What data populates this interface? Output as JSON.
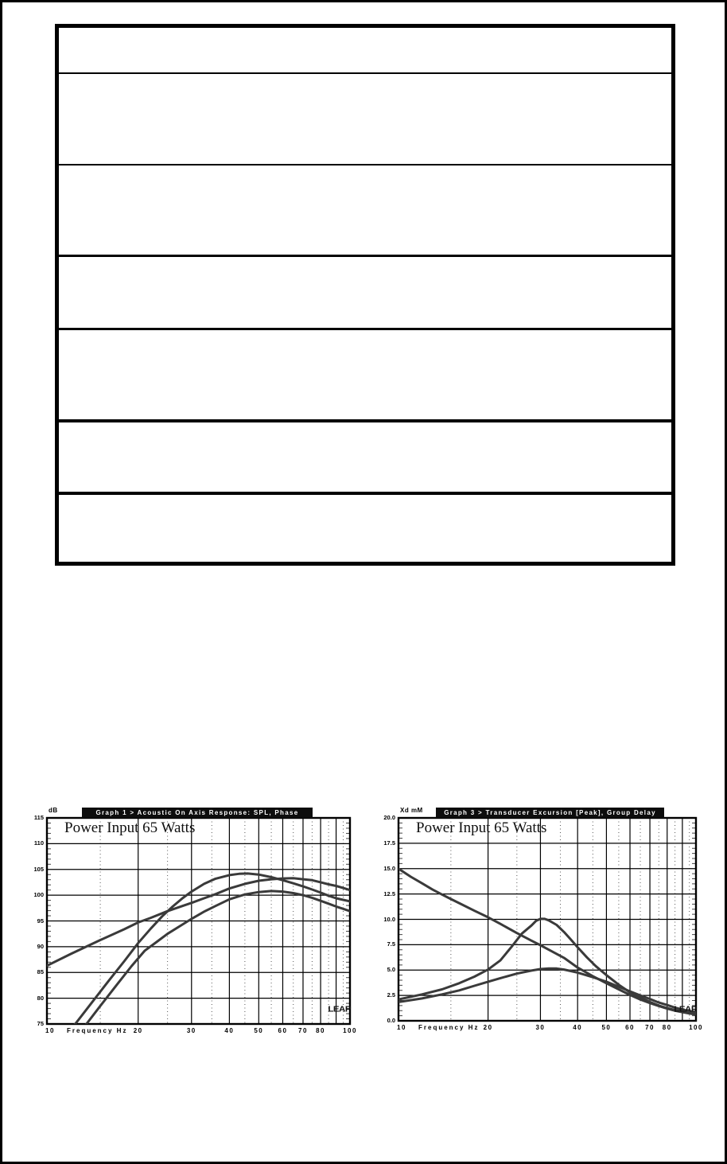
{
  "colors": {
    "page_background": "#ffffff",
    "page_border": "#000000",
    "grid_line": "#000000",
    "dotted_grid": "#555555",
    "curve": "#3a3a3a",
    "title_bar_bg": "#0d0d0d",
    "title_bar_text": "#ffffff"
  },
  "table": {
    "row_count": 7
  },
  "chart_data": [
    {
      "type": "line",
      "title": "Graph 1 > Acoustic On Axis Response: SPL, Phase",
      "ylabel_unit": "dB",
      "xlabel": "Frequency   Hz",
      "annotation": "Power Input 65 Watts",
      "logo": "LEAP",
      "x_scale": "log",
      "xlim": [
        10,
        100
      ],
      "ylim": [
        75,
        115
      ],
      "y_step": 5,
      "y_minor_step": 1,
      "grid": true,
      "legend": "none",
      "x_solid": [
        10,
        20,
        30,
        40,
        50,
        60,
        70,
        80,
        90,
        100
      ],
      "x_dotted": [
        15,
        25,
        35,
        45,
        55,
        65,
        75,
        85,
        95
      ],
      "x_ticks": [
        {
          "f": 10,
          "t": "10"
        },
        {
          "f": 20,
          "t": "20"
        },
        {
          "f": 30,
          "t": "30"
        },
        {
          "f": 40,
          "t": "40"
        },
        {
          "f": 50,
          "t": "50"
        },
        {
          "f": 60,
          "t": "60"
        },
        {
          "f": 70,
          "t": "70"
        },
        {
          "f": 80,
          "t": "80"
        },
        {
          "f": 100,
          "t": "100"
        }
      ],
      "y_tick_labels": [
        "115",
        "110",
        "105",
        "100",
        "95",
        "90",
        "85",
        "80",
        "75"
      ],
      "series": [
        {
          "name": "curve-1-shallow",
          "points": [
            [
              10,
              86.3
            ],
            [
              12,
              88.6
            ],
            [
              15,
              91.3
            ],
            [
              18,
              93.4
            ],
            [
              20,
              94.7
            ],
            [
              22,
              95.6
            ],
            [
              25,
              96.9
            ],
            [
              28,
              97.9
            ],
            [
              30,
              98.5
            ],
            [
              33,
              99.4
            ],
            [
              36,
              100.2
            ],
            [
              40,
              101.3
            ],
            [
              45,
              102.2
            ],
            [
              50,
              102.8
            ],
            [
              55,
              103.1
            ],
            [
              60,
              103.25
            ],
            [
              65,
              103.3
            ],
            [
              70,
              103.1
            ],
            [
              75,
              102.9
            ],
            [
              80,
              102.5
            ],
            [
              85,
              102.1
            ],
            [
              90,
              101.8
            ],
            [
              95,
              101.4
            ],
            [
              100,
              101.0
            ]
          ]
        },
        {
          "name": "curve-2-steep-peak-104",
          "points": [
            [
              12,
              74.2
            ],
            [
              12.4,
              75
            ],
            [
              14,
              79
            ],
            [
              16,
              83.4
            ],
            [
              18,
              87.2
            ],
            [
              20,
              90.7
            ],
            [
              22,
              93.5
            ],
            [
              24,
              95.9
            ],
            [
              26,
              97.8
            ],
            [
              28,
              99.4
            ],
            [
              30,
              100.7
            ],
            [
              33,
              102.2
            ],
            [
              36,
              103.2
            ],
            [
              40,
              103.9
            ],
            [
              43,
              104.15
            ],
            [
              46,
              104.2
            ],
            [
              50,
              104.0
            ],
            [
              55,
              103.5
            ],
            [
              60,
              102.9
            ],
            [
              65,
              102.3
            ],
            [
              70,
              101.7
            ],
            [
              75,
              101.1
            ],
            [
              80,
              100.5
            ],
            [
              85,
              99.9
            ],
            [
              90,
              99.4
            ],
            [
              95,
              99.1
            ],
            [
              100,
              98.8
            ]
          ]
        },
        {
          "name": "curve-3-steep-peak-101",
          "points": [
            [
              13,
              72
            ],
            [
              13.5,
              75
            ],
            [
              15,
              78.5
            ],
            [
              17,
              82.6
            ],
            [
              19,
              86.2
            ],
            [
              21,
              89.2
            ],
            [
              23,
              90.9
            ],
            [
              25,
              92.5
            ],
            [
              28,
              94.3
            ],
            [
              30,
              95.4
            ],
            [
              33,
              96.8
            ],
            [
              36,
              97.9
            ],
            [
              40,
              99.2
            ],
            [
              45,
              100.15
            ],
            [
              50,
              100.6
            ],
            [
              55,
              100.8
            ],
            [
              60,
              100.7
            ],
            [
              65,
              100.4
            ],
            [
              70,
              100.0
            ],
            [
              75,
              99.5
            ],
            [
              80,
              98.9
            ],
            [
              85,
              98.35
            ],
            [
              90,
              97.8
            ],
            [
              95,
              97.35
            ],
            [
              100,
              96.9
            ]
          ]
        }
      ]
    },
    {
      "type": "line",
      "title": "Graph 3 > Transducer Excursion [Peak], Group Delay",
      "ylabel_unit": "Xd mM",
      "xlabel": "Frequency   Hz",
      "annotation": "Power Input 65 Watts",
      "logo": "LEAP",
      "x_scale": "log",
      "xlim": [
        10,
        100
      ],
      "ylim": [
        0,
        20
      ],
      "y_step": 2.5,
      "y_minor_step": 0.5,
      "grid": true,
      "legend": "none",
      "x_solid": [
        10,
        20,
        30,
        40,
        50,
        60,
        70,
        80,
        90,
        100
      ],
      "x_dotted": [
        15,
        25,
        35,
        45,
        55,
        65,
        75,
        85,
        95
      ],
      "x_ticks": [
        {
          "f": 10,
          "t": "10"
        },
        {
          "f": 20,
          "t": "20"
        },
        {
          "f": 30,
          "t": "30"
        },
        {
          "f": 40,
          "t": "40"
        },
        {
          "f": 50,
          "t": "50"
        },
        {
          "f": 60,
          "t": "60"
        },
        {
          "f": 70,
          "t": "70"
        },
        {
          "f": 80,
          "t": "80"
        },
        {
          "f": 100,
          "t": "100"
        }
      ],
      "y_tick_labels": [
        "20.0",
        "17.5",
        "15.0",
        "12.5",
        "10.0",
        "7.5",
        "5.0",
        "2.5",
        "0.0"
      ],
      "series": [
        {
          "name": "curve-1-declining-from-15mm",
          "points": [
            [
              10,
              15.0
            ],
            [
              11,
              14.2
            ],
            [
              12,
              13.55
            ],
            [
              13,
              12.95
            ],
            [
              14,
              12.45
            ],
            [
              15,
              12.0
            ],
            [
              16,
              11.6
            ],
            [
              18,
              10.85
            ],
            [
              20,
              10.2
            ],
            [
              22,
              9.55
            ],
            [
              25,
              8.65
            ],
            [
              28,
              7.9
            ],
            [
              30,
              7.45
            ],
            [
              33,
              6.8
            ],
            [
              36,
              6.2
            ],
            [
              40,
              5.25
            ],
            [
              45,
              4.4
            ],
            [
              50,
              3.7
            ],
            [
              55,
              3.1
            ],
            [
              60,
              2.55
            ],
            [
              65,
              2.1
            ],
            [
              70,
              1.75
            ],
            [
              75,
              1.45
            ],
            [
              80,
              1.2
            ],
            [
              85,
              1.0
            ],
            [
              90,
              0.85
            ],
            [
              95,
              0.72
            ],
            [
              100,
              0.62
            ]
          ]
        },
        {
          "name": "curve-2-peak-10mm-at-30Hz",
          "points": [
            [
              10,
              2.1
            ],
            [
              12,
              2.6
            ],
            [
              14,
              3.1
            ],
            [
              16,
              3.7
            ],
            [
              18,
              4.35
            ],
            [
              20,
              5.05
            ],
            [
              22,
              5.95
            ],
            [
              24,
              7.3
            ],
            [
              26,
              8.6
            ],
            [
              28,
              9.4
            ],
            [
              29,
              9.85
            ],
            [
              30,
              10.05
            ],
            [
              31,
              10.05
            ],
            [
              32,
              9.9
            ],
            [
              34,
              9.45
            ],
            [
              36,
              8.75
            ],
            [
              38,
              8.0
            ],
            [
              40,
              7.25
            ],
            [
              43,
              6.25
            ],
            [
              46,
              5.4
            ],
            [
              50,
              4.5
            ],
            [
              55,
              3.55
            ],
            [
              60,
              2.8
            ],
            [
              65,
              2.3
            ],
            [
              70,
              1.85
            ],
            [
              75,
              1.5
            ],
            [
              80,
              1.25
            ],
            [
              85,
              1.05
            ],
            [
              90,
              0.9
            ],
            [
              95,
              0.78
            ],
            [
              100,
              0.7
            ]
          ]
        },
        {
          "name": "curve-3-peak-5mm-at-32Hz",
          "points": [
            [
              10,
              1.85
            ],
            [
              12,
              2.2
            ],
            [
              14,
              2.6
            ],
            [
              16,
              3.0
            ],
            [
              18,
              3.45
            ],
            [
              20,
              3.85
            ],
            [
              22,
              4.2
            ],
            [
              25,
              4.65
            ],
            [
              28,
              4.95
            ],
            [
              30,
              5.1
            ],
            [
              32,
              5.15
            ],
            [
              34,
              5.15
            ],
            [
              36,
              5.05
            ],
            [
              40,
              4.75
            ],
            [
              45,
              4.3
            ],
            [
              50,
              3.85
            ],
            [
              55,
              3.35
            ],
            [
              60,
              2.9
            ],
            [
              65,
              2.5
            ],
            [
              70,
              2.15
            ],
            [
              75,
              1.8
            ],
            [
              80,
              1.55
            ],
            [
              85,
              1.3
            ],
            [
              90,
              1.1
            ],
            [
              95,
              0.95
            ],
            [
              100,
              0.82
            ]
          ]
        }
      ]
    }
  ]
}
